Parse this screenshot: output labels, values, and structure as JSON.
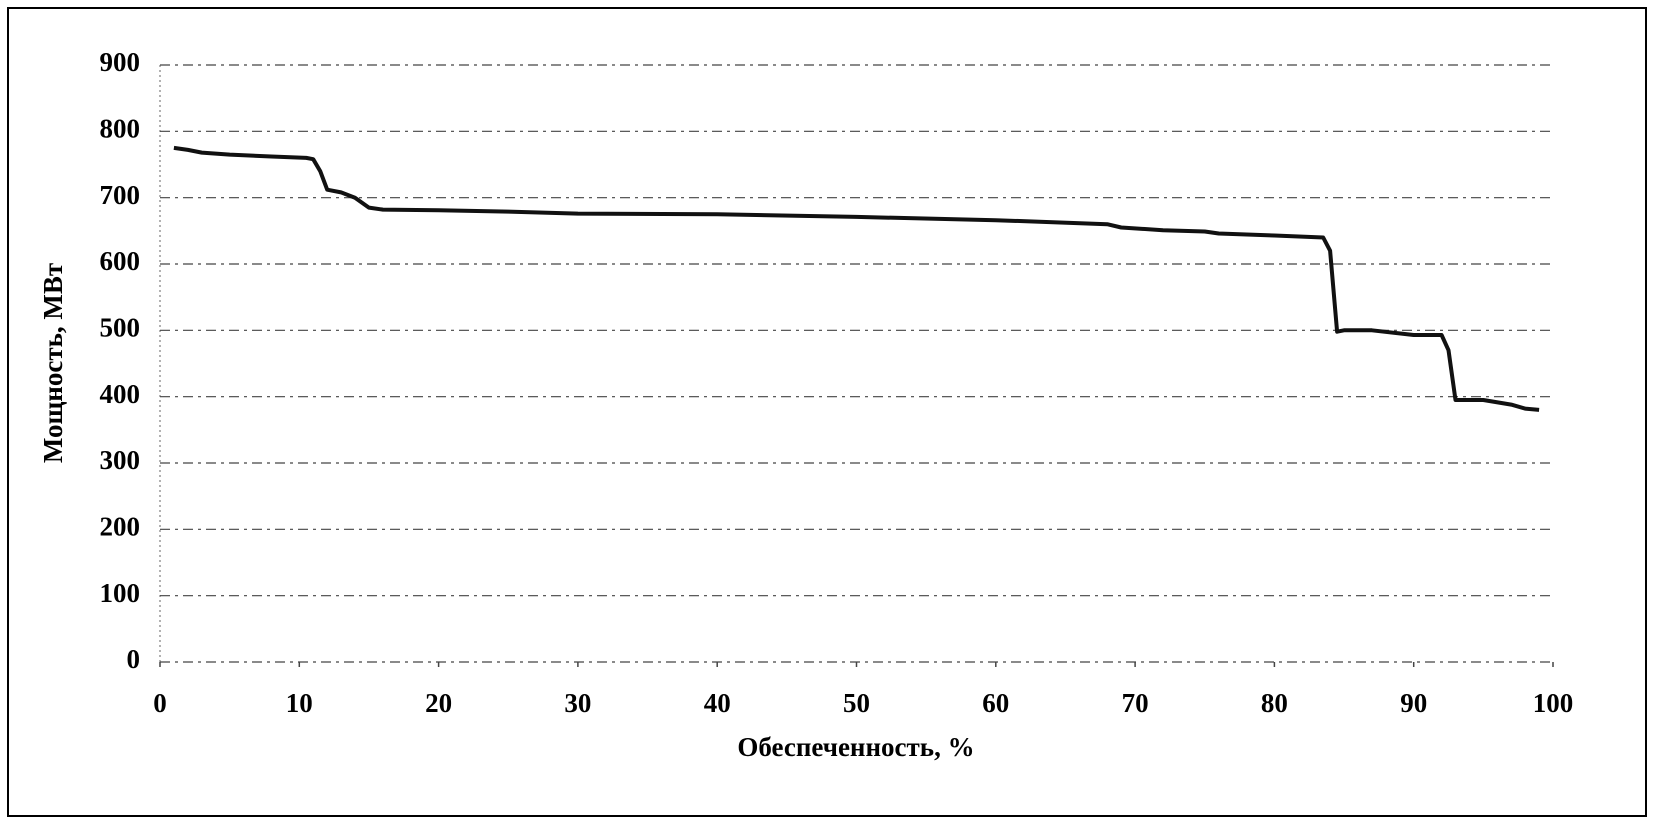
{
  "chart_data": {
    "type": "line",
    "x_label": "Обеспеченность, %",
    "y_label": "Мощность, МВт",
    "x": [
      1,
      2,
      3,
      5,
      8,
      10.5,
      11,
      11.5,
      12,
      13,
      14,
      15,
      16,
      20,
      25,
      30,
      40,
      50,
      60,
      68,
      69,
      72,
      75,
      76,
      80,
      83.5,
      84,
      84.5,
      85,
      87,
      90,
      92,
      92.5,
      93,
      95,
      97,
      98,
      99
    ],
    "values": [
      775,
      772,
      768,
      765,
      762,
      760,
      758,
      740,
      712,
      708,
      700,
      685,
      682,
      681,
      679,
      676,
      675,
      671,
      666,
      660,
      655,
      651,
      649,
      646,
      643,
      640,
      620,
      498,
      500,
      500,
      493,
      493,
      470,
      395,
      395,
      388,
      382,
      380
    ],
    "color": "#111111",
    "xlim": [
      0,
      100
    ],
    "xticks": [
      0,
      10,
      20,
      30,
      40,
      50,
      60,
      70,
      80,
      90,
      100
    ],
    "ylim": [
      0,
      900
    ],
    "yticks": [
      0,
      100,
      200,
      300,
      400,
      500,
      600,
      700,
      800,
      900
    ],
    "grid": true
  }
}
